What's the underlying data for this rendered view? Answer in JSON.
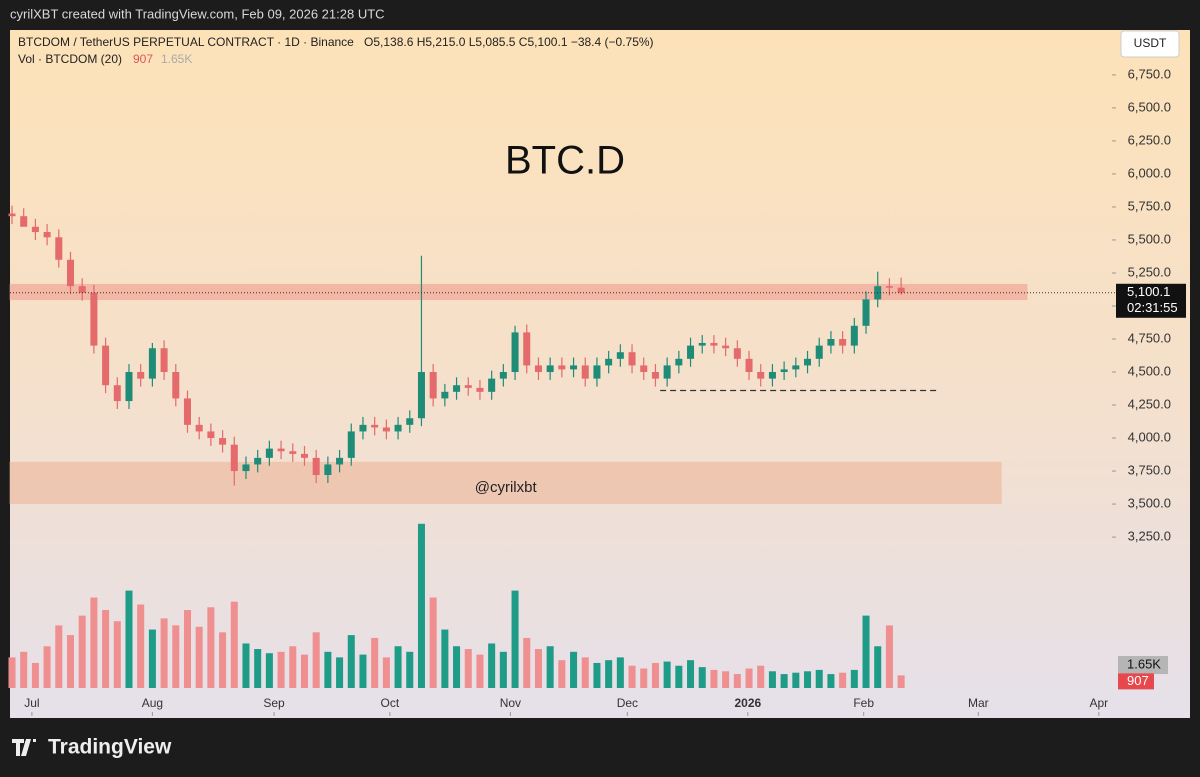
{
  "chart_data": {
    "type": "candlestick",
    "created_text": "cyrilXBT created with TradingView.com, Feb 09, 2026 21:28 UTC",
    "symbol_text": "BTCDOM / TetherUS PERPETUAL CONTRACT · 1D · Binance",
    "ohlc_text": "O5,138.6  H5,215.0  L5,085.5  C5,100.1  −38.4 (−0.75%)",
    "volume_text": "Vol · BTCDOM (20)",
    "title": "BTC.D",
    "watermark": "@cyrilxbt",
    "currency": "USDT",
    "brand": "TradingView",
    "countdown": "02:31:55",
    "last_price_label": "5,100.1",
    "volume_ma": {
      "value": 1650,
      "label": "1.65K"
    },
    "up_color": "#1f8c78",
    "down_color": "#e46a6c",
    "vol_up_color": "#1e9c87",
    "vol_down_color": "#ef8f90",
    "categories": [
      null,
      null,
      null,
      null,
      null,
      null,
      null,
      null,
      null,
      null,
      null,
      null,
      null,
      null,
      null,
      null,
      null,
      null,
      null,
      null,
      null,
      null,
      null,
      null,
      null,
      null,
      null,
      null,
      null,
      null,
      null,
      null,
      null,
      null,
      null,
      null,
      null,
      null,
      null,
      null,
      null,
      null,
      null,
      null,
      null,
      null,
      null,
      null,
      null,
      null,
      null,
      null,
      null,
      null,
      null,
      null,
      null,
      null,
      null,
      null,
      null,
      null,
      null,
      null,
      null,
      null,
      null,
      null,
      null,
      null,
      null,
      null,
      null,
      null,
      null,
      null,
      null
    ],
    "open": [
      5700,
      5680,
      5600,
      5560,
      5520,
      5350,
      5150,
      5100,
      4700,
      4400,
      4280,
      4500,
      4450,
      4680,
      4500,
      4300,
      4100,
      4050,
      4000,
      3950,
      3750,
      3800,
      3850,
      3920,
      3900,
      3880,
      3850,
      3720,
      3800,
      3850,
      4050,
      4100,
      4080,
      4050,
      4100,
      4150,
      4500,
      4300,
      4350,
      4400,
      4380,
      4350,
      4450,
      4500,
      4800,
      4550,
      4500,
      4550,
      4520,
      4550,
      4450,
      4550,
      4600,
      4650,
      4550,
      4500,
      4450,
      4550,
      4600,
      4700,
      4720,
      4700,
      4680,
      4600,
      4500,
      4450,
      4500,
      4520,
      4550,
      4600,
      4700,
      4750,
      4700,
      4850,
      5050,
      5150,
      5138.6
    ],
    "high": [
      5760,
      5740,
      5660,
      5620,
      5580,
      5410,
      5210,
      5160,
      4760,
      4460,
      4560,
      4560,
      4720,
      4740,
      4560,
      4360,
      4160,
      4110,
      4060,
      4010,
      3860,
      3910,
      3980,
      3980,
      3960,
      3940,
      3910,
      3860,
      3910,
      4110,
      4160,
      4160,
      4140,
      4160,
      4210,
      5380,
      4560,
      4410,
      4460,
      4460,
      4440,
      4510,
      4560,
      4850,
      4860,
      4610,
      4610,
      4610,
      4610,
      4610,
      4610,
      4660,
      4710,
      4710,
      4610,
      4560,
      4610,
      4660,
      4760,
      4780,
      4780,
      4760,
      4740,
      4660,
      4560,
      4560,
      4580,
      4610,
      4660,
      4760,
      4810,
      4810,
      4910,
      5110,
      5260,
      5210,
      5215
    ],
    "low": [
      5620,
      5620,
      5500,
      5460,
      5290,
      5090,
      5040,
      4640,
      4340,
      4220,
      4220,
      4390,
      4390,
      4440,
      4240,
      4040,
      3990,
      3940,
      3890,
      3640,
      3690,
      3740,
      3790,
      3840,
      3820,
      3790,
      3660,
      3660,
      3740,
      3790,
      3990,
      4020,
      3990,
      3990,
      4040,
      4090,
      4240,
      4240,
      4290,
      4320,
      4290,
      4290,
      4390,
      4440,
      4490,
      4440,
      4440,
      4460,
      4460,
      4390,
      4390,
      4490,
      4540,
      4490,
      4440,
      4390,
      4390,
      4490,
      4540,
      4640,
      4640,
      4620,
      4540,
      4440,
      4390,
      4390,
      4440,
      4460,
      4490,
      4540,
      4640,
      4640,
      4640,
      4790,
      4990,
      5080,
      5085.5
    ],
    "close": [
      5680,
      5600,
      5560,
      5520,
      5350,
      5150,
      5100,
      4700,
      4400,
      4280,
      4500,
      4450,
      4680,
      4500,
      4300,
      4100,
      4050,
      4000,
      3950,
      3750,
      3800,
      3850,
      3920,
      3900,
      3880,
      3850,
      3720,
      3800,
      3850,
      4050,
      4100,
      4080,
      4050,
      4100,
      4150,
      4500,
      4300,
      4350,
      4400,
      4380,
      4350,
      4450,
      4500,
      4800,
      4550,
      4500,
      4550,
      4520,
      4550,
      4450,
      4550,
      4600,
      4650,
      4550,
      4500,
      4450,
      4550,
      4600,
      4700,
      4720,
      4700,
      4680,
      4600,
      4500,
      4450,
      4500,
      4520,
      4550,
      4600,
      4700,
      4750,
      4700,
      4850,
      5050,
      5150,
      5138.6,
      5100.1
    ],
    "volume": [
      2200,
      2600,
      1800,
      3000,
      4500,
      3800,
      5200,
      6500,
      5600,
      4800,
      7000,
      6000,
      4200,
      5000,
      4500,
      5600,
      4400,
      5800,
      4000,
      6200,
      3200,
      2800,
      2500,
      2600,
      3000,
      2400,
      4000,
      2600,
      2200,
      3800,
      2400,
      3600,
      2200,
      3000,
      2600,
      11800,
      6500,
      4200,
      3000,
      2800,
      2400,
      3200,
      2600,
      7000,
      3600,
      2800,
      3000,
      2000,
      2600,
      2200,
      1800,
      2000,
      2200,
      1600,
      1400,
      1800,
      1900,
      1600,
      2000,
      1500,
      1300,
      1200,
      1000,
      1400,
      1600,
      1200,
      1000,
      1100,
      1200,
      1300,
      1000,
      1100,
      1300,
      5200,
      3000,
      4500,
      907
    ],
    "xlim": [
      0,
      93
    ],
    "ylim": [
      1880,
      7090
    ],
    "vol_ylim": [
      0,
      12000
    ],
    "xticks": [
      {
        "value": 1.7,
        "label": "Jul"
      },
      {
        "value": 12.0,
        "label": "Aug"
      },
      {
        "value": 22.4,
        "label": "Sep"
      },
      {
        "value": 32.3,
        "label": "Oct"
      },
      {
        "value": 42.6,
        "label": "Nov"
      },
      {
        "value": 52.6,
        "label": "Dec"
      },
      {
        "value": 62.9,
        "label": "2026"
      },
      {
        "value": 72.8,
        "label": "Feb"
      },
      {
        "value": 82.6,
        "label": "Mar"
      },
      {
        "value": 92.9,
        "label": "Apr"
      }
    ],
    "yticks": [
      {
        "value": 3250,
        "label": "3,250.0"
      },
      {
        "value": 3500,
        "label": "3,500.0"
      },
      {
        "value": 3750,
        "label": "3,750.0"
      },
      {
        "value": 4000,
        "label": "4,000.0"
      },
      {
        "value": 4250,
        "label": "4,250.0"
      },
      {
        "value": 4500,
        "label": "4,500.0"
      },
      {
        "value": 4750,
        "label": "4,750.0"
      },
      {
        "value": 5000,
        "label": "5,000.0"
      },
      {
        "value": 5250,
        "label": "5,250.0"
      },
      {
        "value": 5500,
        "label": "5,500.0"
      },
      {
        "value": 5750,
        "label": "5,750.0"
      },
      {
        "value": 6000,
        "label": "6,000.0"
      },
      {
        "value": 6250,
        "label": "6,250.0"
      },
      {
        "value": 6500,
        "label": "6,500.0"
      },
      {
        "value": 6750,
        "label": "6,750.0"
      }
    ],
    "zones": [
      {
        "y": [
          5045,
          5167
        ],
        "x": [
          -0.2,
          86.8
        ],
        "color": "#f2a99a"
      },
      {
        "y": [
          3500,
          3820
        ],
        "x": [
          -0.2,
          84.6
        ],
        "color": "#eebfa6"
      }
    ],
    "dashed_line": {
      "y": 4360,
      "x": [
        55.4,
        79.3
      ]
    }
  }
}
